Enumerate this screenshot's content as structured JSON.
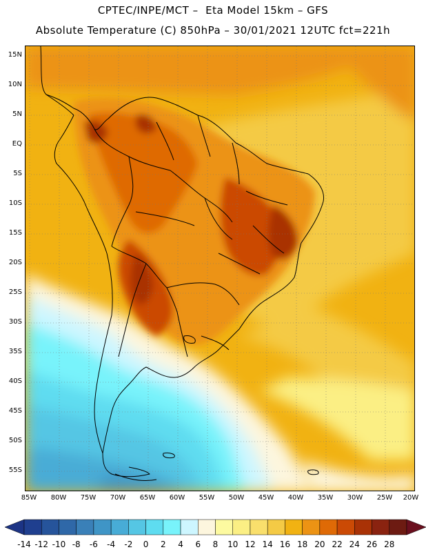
{
  "header": {
    "line1": "CPTEC/INPE/MCT –  Eta Model 15km – GFS",
    "line2": "Absolute Temperature (C) 850hPa – 30/01/2021 12UTC fct=221h"
  },
  "map": {
    "lat_labels": [
      "15N",
      "10N",
      "5N",
      "EQ",
      "5S",
      "10S",
      "15S",
      "20S",
      "25S",
      "30S",
      "35S",
      "40S",
      "45S",
      "50S",
      "55S"
    ],
    "lon_labels": [
      "85W",
      "80W",
      "75W",
      "70W",
      "65W",
      "60W",
      "55W",
      "50W",
      "45W",
      "40W",
      "35W",
      "30W",
      "25W",
      "20W"
    ]
  },
  "colorbar": {
    "labels": [
      "-14",
      "-12",
      "-10",
      "-8",
      "-6",
      "-4",
      "-2",
      "0",
      "2",
      "4",
      "6",
      "8",
      "10",
      "12",
      "14",
      "16",
      "18",
      "20",
      "22",
      "24",
      "26",
      "28"
    ],
    "colors": [
      "#1f3f8f",
      "#26549b",
      "#2f68a8",
      "#3a80b8",
      "#3f95c6",
      "#48acd6",
      "#55c6e4",
      "#5edcf0",
      "#78f3fb",
      "#cdf6ff",
      "#fdf6de",
      "#fdfaa0",
      "#fbef84",
      "#f9df6c",
      "#f4ca45",
      "#f1b212",
      "#ec9314",
      "#df6a06",
      "#cb4a05",
      "#a93206",
      "#8a2310",
      "#6d1b12"
    ],
    "under_color": "#1c3485",
    "over_color": "#6a0f1e"
  }
}
